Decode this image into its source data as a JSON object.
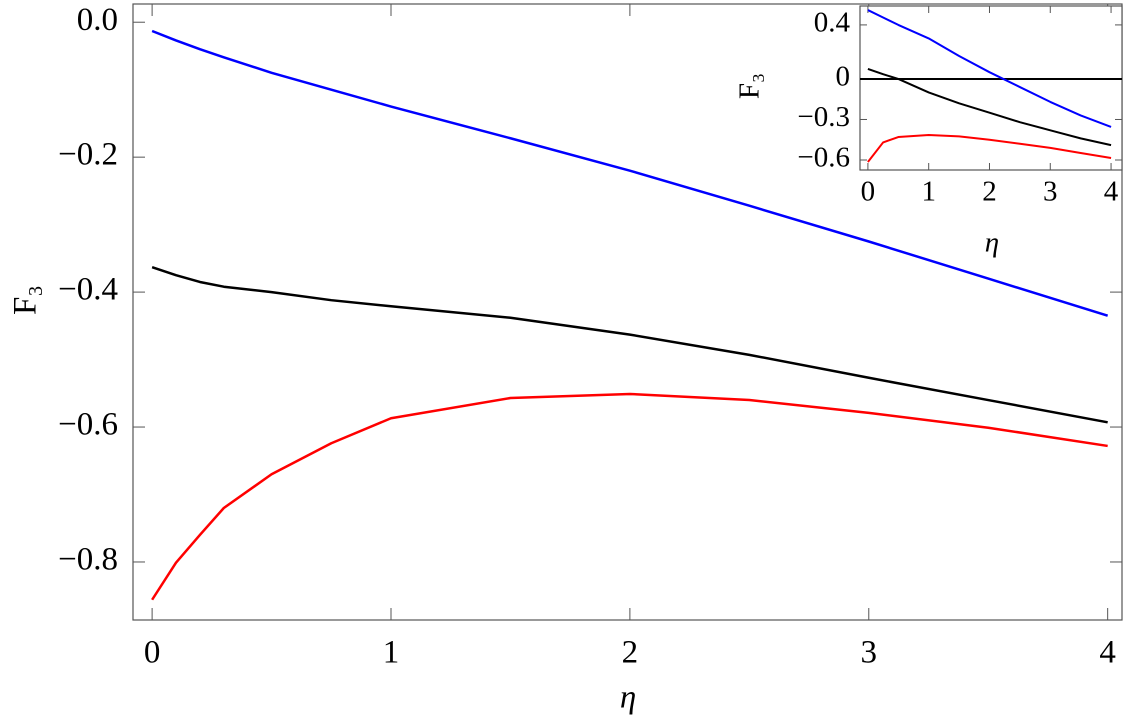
{
  "chart_data": [
    {
      "type": "line",
      "xlabel": "η",
      "ylabel": "F₃",
      "x": [
        0,
        0.1,
        0.2,
        0.3,
        0.5,
        0.75,
        1,
        1.5,
        2,
        2.5,
        3,
        3.5,
        4
      ],
      "series": [
        {
          "color": "#0000ff",
          "values": [
            -0.013,
            -0.027,
            -0.04,
            -0.052,
            -0.075,
            -0.1,
            -0.125,
            -0.172,
            -0.22,
            -0.272,
            -0.325,
            -0.38,
            -0.435
          ]
        },
        {
          "color": "#000000",
          "values": [
            -0.363,
            -0.375,
            -0.385,
            -0.392,
            -0.4,
            -0.412,
            -0.421,
            -0.438,
            -0.463,
            -0.493,
            -0.527,
            -0.56,
            -0.593
          ]
        },
        {
          "color": "#ff0000",
          "values": [
            -0.856,
            -0.801,
            -0.76,
            -0.72,
            -0.67,
            -0.624,
            -0.587,
            -0.557,
            -0.551,
            -0.56,
            -0.579,
            -0.601,
            -0.628
          ]
        }
      ],
      "xlim": [
        -0.08,
        4.06
      ],
      "ylim": [
        -0.886,
        0.027
      ],
      "xticks": [
        0,
        1,
        2,
        3,
        4
      ],
      "yticks": [
        {
          "value": 0,
          "label": "0.0"
        },
        {
          "value": -0.2,
          "label": "−0.2"
        },
        {
          "value": -0.4,
          "label": "−0.4"
        },
        {
          "value": -0.6,
          "label": "−0.6"
        },
        {
          "value": -0.8,
          "label": "−0.8"
        }
      ]
    },
    {
      "type": "line",
      "xlabel": "η",
      "ylabel": "F₃",
      "x": [
        0,
        0.25,
        0.5,
        1,
        1.5,
        2,
        2.5,
        3,
        3.5,
        4
      ],
      "series": [
        {
          "color": "#0000ff",
          "values": [
            0.51,
            0.455,
            0.4,
            0.3,
            0.17,
            0.05,
            -0.06,
            -0.17,
            -0.27,
            -0.355
          ]
        },
        {
          "color": "#000000",
          "values": [
            0.074,
            0.035,
            0,
            -0.1,
            -0.18,
            -0.25,
            -0.32,
            -0.38,
            -0.44,
            -0.49
          ]
        },
        {
          "color": "#ff0000",
          "values": [
            -0.615,
            -0.47,
            -0.43,
            -0.415,
            -0.425,
            -0.45,
            -0.48,
            -0.51,
            -0.548,
            -0.585
          ]
        }
      ],
      "hline": 0,
      "hline_color": "#000000",
      "xlim": [
        -0.13,
        4.18
      ],
      "ylim": [
        -0.674,
        0.54
      ],
      "xticks": [
        0,
        1,
        2,
        3,
        4
      ],
      "yticks": [
        0.4,
        0,
        {
          "value": -0.3,
          "label": "−0.3"
        },
        {
          "value": -0.6,
          "label": "−0.6"
        }
      ]
    }
  ]
}
